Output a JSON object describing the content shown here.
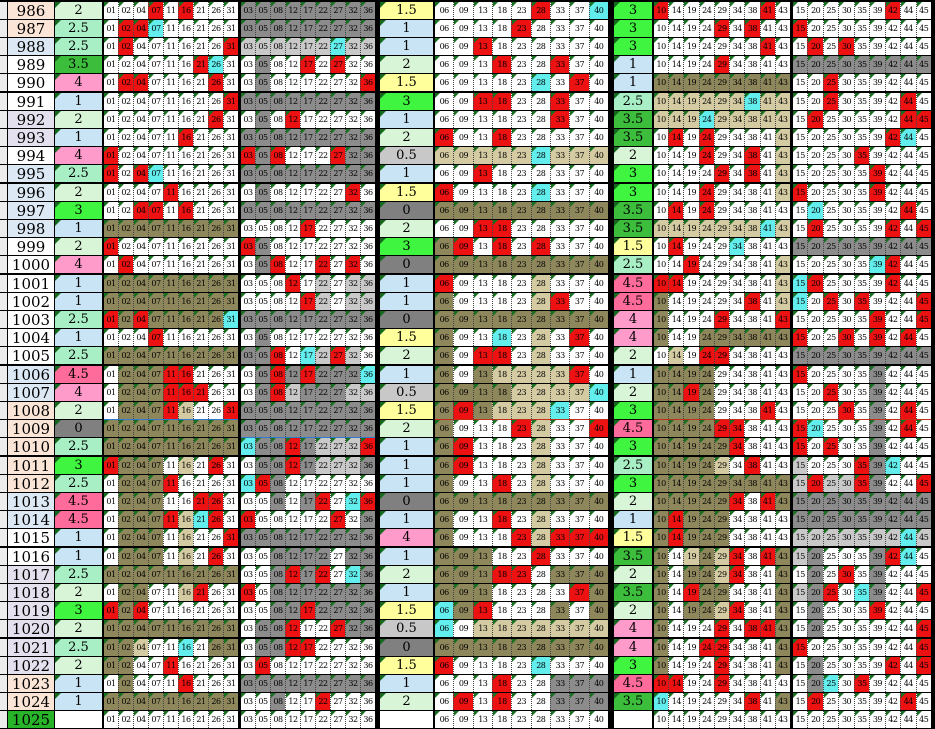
{
  "app": {
    "name": "lottery-number-trend-sheet"
  },
  "columns": {
    "g1": [
      "01",
      "02",
      "04",
      "07",
      "11",
      "16",
      "21",
      "26",
      "31"
    ],
    "g2": [
      "03",
      "05",
      "08",
      "12",
      "17",
      "22",
      "27",
      "32",
      "36"
    ],
    "g3": [
      "06",
      "09",
      "13",
      "18",
      "23",
      "28",
      "33",
      "37",
      "40"
    ],
    "g4": [
      "10",
      "14",
      "19",
      "24",
      "29",
      "34",
      "38",
      "41",
      "43"
    ],
    "g5": [
      "15",
      "20",
      "25",
      "30",
      "35",
      "39",
      "42",
      "44",
      "45"
    ]
  },
  "cell_colors": {
    "w": "#FFFFFF",
    "r": "#EE1111",
    "c": "#63EEEE",
    "g": "#8C8C8C",
    "l": "#C9C9C9",
    "t": "#8F875C",
    "b": "#D5CBA3"
  },
  "value_colors": {
    "0": "#808080",
    "0.5": "#C8C8C8",
    "1": "#C9E4F5",
    "1.5": "#FFFF9C",
    "2": "#D8F5D8",
    "2.5": "#A9EFC5",
    "3": "#3FF53F",
    "3.5": "#3CBE3C",
    "4": "#FF9BCB",
    "4.5": "#FF6B9B",
    "": "#FFFFFF"
  },
  "id_colors": {
    "p": "#FBE5D6",
    "b": "#DCE9F5",
    "v": "#E4E0EE",
    "w": "#FFFFFF",
    "G": "#28B428"
  },
  "line_colors": {
    "blue": "#2F7BD0",
    "red": "#C03018"
  },
  "rows": [
    {
      "id": "986",
      "idc": "p",
      "v1": "2",
      "g1": "wwwrwrwww",
      "g2": "ggggggggg",
      "v2": "1.5",
      "g3": "wwwwwrwwc",
      "v3": "3",
      "g4": "rwwwwwwrw",
      "g5": "wwwwwwrww"
    },
    {
      "id": "987",
      "idc": "p",
      "v1": "2.5",
      "g1": "wrrcwwwww",
      "g2": "ggggggggg",
      "v2": "1",
      "g3": "wwwwrwwww",
      "v3": "3",
      "g4": "wwwwrwrww",
      "g5": "rwwwwwwww"
    },
    {
      "id": "988",
      "idc": "b",
      "v1": "2.5",
      "g1": "wrwwwwwwr",
      "g2": "llllllcll",
      "v2": "1",
      "g3": "wwrwwwwww",
      "v3": "3",
      "g4": "wwwwwwwrw",
      "g5": "wrwrwwwww"
    },
    {
      "id": "989",
      "idc": "w",
      "v1": "3.5",
      "g1": "wwwwwwrcw",
      "g2": "wgwwrwrww",
      "v2": "2",
      "g3": "wwwrwwrww",
      "v3": "1",
      "g4": "wwwwrwwww",
      "g5": "ggggggggg"
    },
    {
      "id": "990",
      "idc": "w",
      "v1": "4",
      "g1": "wrrwwwwrw",
      "g2": "wgwwwwwwr",
      "v2": "1.5",
      "g3": "wwwwwcwrw",
      "v3": "1",
      "g4": "ttttttttt",
      "g5": "wwrwwwwww"
    },
    {
      "id": "991",
      "idc": "w",
      "v1": "1",
      "g1": "wwwwwwwwr",
      "g2": "ggggggggg",
      "v2": "3",
      "g3": "wwrrwwrww",
      "v3": "2.5",
      "g4": "bbbbbbcbb",
      "g5": "wwrwwwwrw"
    },
    {
      "id": "992",
      "idc": "v",
      "v1": "2",
      "g1": "wwwwwwwrw",
      "g2": "wgwrwwwww",
      "v2": "1",
      "g3": "wwwwwwrww",
      "v3": "3.5",
      "g4": "bbbcbbbbb",
      "g5": "wrwwwwwrr"
    },
    {
      "id": "993",
      "idc": "v",
      "v1": "1",
      "g1": "wwwwwrwww",
      "g2": "ggggggggg",
      "v2": "2",
      "g3": "rwwrwwwww",
      "v3": "3.5",
      "g4": "wrwrwwwwb",
      "g5": "wwwwwwrcw"
    },
    {
      "id": "994",
      "idc": "w",
      "v1": "4",
      "g1": "rwwwwwwww",
      "g2": "rgrwwwrgg",
      "v2": "0.5",
      "g3": "bbbbbcbbb",
      "v3": "2",
      "g4": "wwwrwwrwb",
      "g5": "wwwwrwwww"
    },
    {
      "id": "995",
      "idc": "b",
      "v1": "2.5",
      "g1": "rwrcwwwww",
      "g2": "ggggggggg",
      "v2": "1",
      "g3": "wwrwwwwww",
      "v3": "3",
      "g4": "wwwwrwrwb",
      "g5": "wwwwwrwww"
    },
    {
      "id": "996",
      "idc": "b",
      "v1": "2",
      "g1": "wwwwrwwww",
      "g2": "wgwwwwwrw",
      "v2": "1.5",
      "g3": "rwwwwcwww",
      "v3": "3",
      "g4": "wwwrwwwwb",
      "g5": "rwwwwrwww"
    },
    {
      "id": "997",
      "idc": "b",
      "v1": "3",
      "g1": "wwrrwrwww",
      "g2": "ggggggggg",
      "v2": "0",
      "g3": "ttttttttt",
      "v3": "3.5",
      "g4": "wrwrwwwww",
      "g5": "wcwwwwwrw"
    },
    {
      "id": "998",
      "idc": "b",
      "v1": "1",
      "g1": "ttttttttt",
      "g2": "wwwwrwwww",
      "v2": "2",
      "g3": "wwrrwwwww",
      "v3": "3.5",
      "g4": "bbbbbbbcb",
      "g5": "wrwwwwrwr"
    },
    {
      "id": "999",
      "idc": "w",
      "v1": "2",
      "g1": "rwwwwwwww",
      "g2": "rgwwwwwww",
      "v2": "3",
      "g3": "trwrwrwww",
      "v3": "1.5",
      "g4": "wrwwwcwww",
      "g5": "ggggggggg"
    },
    {
      "id": "1000",
      "idc": "w",
      "v1": "4",
      "g1": "wrwwwwwww",
      "g2": "wgrwwrwrw",
      "v2": "0",
      "g3": "ttttttttt",
      "v3": "2.5",
      "g4": "wwrwwwwwb",
      "g5": "wwwwwcrww"
    },
    {
      "id": "1001",
      "idc": "w",
      "v1": "1",
      "g1": "ttttttttt",
      "g2": "wwwrwlwll",
      "v2": "1",
      "g3": "rwwwwbwww",
      "v3": "4.5",
      "g4": "rrwwwwwwb",
      "g5": "crwwwwrww"
    },
    {
      "id": "1002",
      "idc": "w",
      "v1": "1",
      "g1": "ttttttttt",
      "g2": "wwwwrlwll",
      "v2": "1",
      "g3": "twwwwbrww",
      "v3": "4.5",
      "g4": "twwwwwrwb",
      "g5": "cwrwrwwwr"
    },
    {
      "id": "1003",
      "idc": "w",
      "v1": "2.5",
      "g1": "rtrtttttc",
      "g2": "ggggggggg",
      "v2": "0",
      "g3": "ttttttttt",
      "v3": "4",
      "g4": "twwwrwwwr",
      "g5": "wwwwwrwwr"
    },
    {
      "id": "1004",
      "idc": "w",
      "v1": "1",
      "g1": "wwwrwwwww",
      "g2": "wgwwwwwww",
      "v2": "1.5",
      "g3": "twwcwbwrw",
      "v3": "4",
      "g4": "twwtttttt",
      "g5": "rwwrwrwrw"
    },
    {
      "id": "1005",
      "idc": "w",
      "v1": "2.5",
      "g1": "ttttttttt",
      "g2": "ggrwclrlw",
      "v2": "2",
      "g3": "twrrwbwww",
      "v3": "2",
      "g4": "wbwrrwwww",
      "g5": "ggggggggg"
    },
    {
      "id": "1006",
      "idc": "b",
      "v1": "4.5",
      "g1": "wtttrrwww",
      "g2": "wgrgrgggc",
      "v2": "1",
      "g3": "twtbbbbrw",
      "v3": "1",
      "g4": "ttttwwwww",
      "g5": "rwwwwgwww"
    },
    {
      "id": "1007",
      "idc": "b",
      "v1": "4",
      "g1": "wtttrrrww",
      "g2": "wgrlgggll",
      "v2": "0.5",
      "g3": "ttttbbbbc",
      "v3": "2",
      "g4": "ttrtwwwww",
      "g5": "wwrwwgwww"
    },
    {
      "id": "1008",
      "idc": "p",
      "v1": "2",
      "g1": "wtttrbwwr",
      "g2": "ggggggggg",
      "v2": "1.5",
      "g3": "trtbbbcww",
      "v3": "3",
      "g4": "ttttwwwrw",
      "g5": "wwwrwgwrw",
      "ul": {
        "g1": "blue",
        "g3": "red",
        "g4": "red",
        "g5": "red"
      }
    },
    {
      "id": "1009",
      "idc": "p",
      "v1": "0",
      "g1": "ttttttttt",
      "g2": "ggggggggg",
      "v2": "2",
      "g3": "twwwrbwwr",
      "v3": "4.5",
      "g4": "ttttrrwww",
      "g5": "rcwwwgwrw",
      "ul": {
        "g2": "blue"
      }
    },
    {
      "id": "1010",
      "idc": "p",
      "v1": "2.5",
      "g1": "ttttttttt",
      "g2": "cggrglllr",
      "v2": "1",
      "g3": "trwwwbwww",
      "v3": "3",
      "g4": "tttttrwww",
      "g5": "rwrwwgwww"
    },
    {
      "id": "1011",
      "idc": "p",
      "v1": "3",
      "g1": "rtttwbwrw",
      "g2": "wggrglllg",
      "v2": "1",
      "g3": "trwwwbwww",
      "v3": "2.5",
      "g4": "ttttbwrww",
      "g5": "lwwwrgcww"
    },
    {
      "id": "1012",
      "idc": "p",
      "v1": "2.5",
      "g1": "wtttrwwww",
      "g2": "crgwwwwww",
      "v2": "1",
      "g3": "twwrwbwww",
      "v3": "3",
      "g4": "ttttttttt",
      "g5": "lrllrgwwr"
    },
    {
      "id": "1013",
      "idc": "b",
      "v1": "4.5",
      "g1": "wtttwwrrw",
      "g2": "wwgwgrwcr",
      "v2": "0",
      "g3": "ttttttttt",
      "v3": "2",
      "g4": "tttttrwrt",
      "g5": "ggggggggg"
    },
    {
      "id": "1014",
      "idc": "b",
      "v1": "4.5",
      "g1": "wtttrbcrw",
      "g2": "rwwwwwrwg",
      "v2": "1",
      "g3": "twwrwbwww",
      "v3": "1",
      "g4": "trtttwwww",
      "g5": "ggggggggg"
    },
    {
      "id": "1015",
      "idc": "w",
      "v1": "1",
      "g1": "wtttwbwwr",
      "g2": "ggggggggg",
      "v2": "4",
      "g3": "twwwrbrrr",
      "v3": "1.5",
      "g4": "trtttwwww",
      "g5": "lllllllcl"
    },
    {
      "id": "1016",
      "idc": "w",
      "v1": "1",
      "g1": "wtttwbwrw",
      "g2": "wwggggwgg",
      "v2": "1",
      "g3": "tttwwrwww",
      "v3": "3.5",
      "g4": "twbtbrwrt",
      "g5": "lgwwwgrcw"
    },
    {
      "id": "1017",
      "idc": "v",
      "v1": "2.5",
      "g1": "ttttttttt",
      "g2": "wwgrgrwcg",
      "v2": "2",
      "g3": "tttrrwttt",
      "v3": "2",
      "g4": "twttbrwwt",
      "g5": "wgwrwgwww"
    },
    {
      "id": "1018",
      "idc": "v",
      "v1": "2",
      "g1": "wttwwbrww",
      "g2": "rwggggggg",
      "v2": "1",
      "g3": "tttwwwwrt",
      "v3": "3.5",
      "g4": "twrttwwwt",
      "g5": "lgrwcgwwr"
    },
    {
      "id": "1019",
      "idc": "v",
      "v1": "3",
      "g1": "rtrwwwwww",
      "g2": "wwggrgggg",
      "v2": "1.5",
      "g3": "ctrwwwtwt",
      "v3": "2",
      "g4": "twttbrwwt",
      "g5": "wgwwwrwww"
    },
    {
      "id": "1020",
      "idc": "v",
      "v1": "2",
      "g1": "ttttttttt",
      "g2": "wggrwwrgg",
      "v2": "0.5",
      "g3": "cwbbbbbbb",
      "v3": "4",
      "g4": "twwwrwrrt",
      "g5": "wgwwwwwwr"
    },
    {
      "id": "1021",
      "idc": "v",
      "v1": "2.5",
      "g1": "ttbwwcwtt",
      "g2": "wggrrwwww",
      "v2": "0",
      "g3": "ttttttttt",
      "v3": "4",
      "g4": "twwrrwwwt",
      "g5": "rwwwwwwwr"
    },
    {
      "id": "1022",
      "idc": "v",
      "v1": "2",
      "g1": "ttwwrwwww",
      "g2": "wrwwwwwww",
      "v2": "1.5",
      "g3": "rwwwwcwww",
      "v3": "3",
      "g4": "twwwrwwwt",
      "g5": "wgwwwwrwr"
    },
    {
      "id": "1023",
      "idc": "p",
      "v1": "1",
      "g1": "wtwwwrwww",
      "g2": "ggggggggg",
      "v2": "1",
      "g3": "wwwrwwggg",
      "v3": "4.5",
      "g4": "rrwwrwwww",
      "g5": "wgcwrwwww"
    },
    {
      "id": "1024",
      "idc": "p",
      "v1": "1",
      "g1": "ttttttttt",
      "g2": "wwgwwrwww",
      "v2": "2",
      "g3": "wrwrwwggg",
      "v3": "3.5",
      "g4": "cwwwwwrwt",
      "g5": "wrwwwwwrw"
    },
    {
      "id": "1025",
      "idc": "G",
      "v1": "",
      "g1": "wwwwwwwww",
      "g2": "wwwwwwwww",
      "v2": "",
      "g3": "wwwwwwwww",
      "v3": "",
      "g4": "wwwwwwwww",
      "g5": "wwwwwwwww"
    }
  ]
}
